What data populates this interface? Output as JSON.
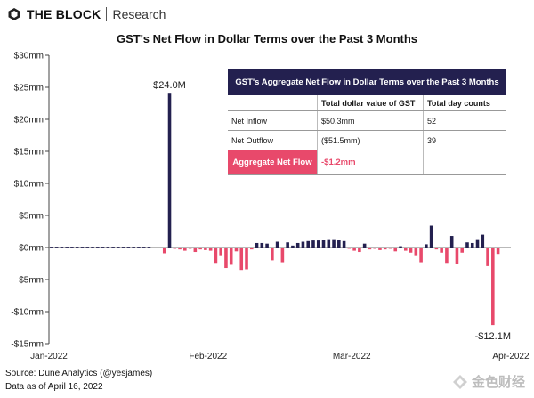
{
  "brand": {
    "name": "THE BLOCK",
    "sub": "Research"
  },
  "source": "Source: Dune Analytics (@yesjames)",
  "data_date": "Data as of April 16, 2022",
  "watermark": "金色财经",
  "colors": {
    "inflow": "#23204f",
    "outflow": "#e8496b",
    "axis": "#444444"
  },
  "chart_data": {
    "type": "bar",
    "title": "GST's Net Flow in Dollar Terms over the Past 3 Months",
    "xlabel": "",
    "ylabel": "",
    "ylim": [
      -15,
      30
    ],
    "yticks": [
      "$30mm",
      "$25mm",
      "$20mm",
      "$15mm",
      "$10mm",
      "$5mm",
      "$0mm",
      "-$5mm",
      "-$10mm",
      "-$15mm"
    ],
    "ytick_values": [
      30,
      25,
      20,
      15,
      10,
      5,
      0,
      -5,
      -10,
      -15
    ],
    "xticks": [
      "Jan-2022",
      "Feb-2022",
      "Mar-2022",
      "Apr-2022"
    ],
    "xtick_days": [
      0,
      31,
      59,
      90
    ],
    "unit": "USD millions",
    "values": [
      0.1,
      0.05,
      0.1,
      0.05,
      0.1,
      0.05,
      0.1,
      0.05,
      0.1,
      0.05,
      0.1,
      0.05,
      0.1,
      0.05,
      0.1,
      0.05,
      0.05,
      0.1,
      0.05,
      0.1,
      -0.05,
      -0.1,
      -0.9,
      24.0,
      -0.2,
      -0.3,
      -0.5,
      -0.2,
      -0.7,
      -0.3,
      -0.4,
      -0.5,
      -2.4,
      -1.2,
      -3.2,
      -2.7,
      -0.6,
      -3.5,
      -3.4,
      -0.3,
      0.7,
      0.7,
      0.6,
      -2.0,
      0.9,
      -2.3,
      0.8,
      0.3,
      0.7,
      0.9,
      1.0,
      1.1,
      1.1,
      1.2,
      1.3,
      1.3,
      1.2,
      1.0,
      -0.2,
      -0.5,
      -0.7,
      0.6,
      -0.3,
      -0.2,
      -0.4,
      -0.3,
      -0.2,
      -0.6,
      0.2,
      -0.5,
      -0.8,
      -1.2,
      -2.3,
      0.5,
      3.4,
      -0.3,
      -0.8,
      -2.4,
      1.8,
      -2.6,
      -0.8,
      0.8,
      0.7,
      1.3,
      2.0,
      -2.9,
      -12.1,
      -1.0
    ],
    "annotations": [
      {
        "text": "$24.0M",
        "day": 23,
        "value": 24.0
      },
      {
        "text": "-$12.1M",
        "day": 86,
        "value": -12.1
      }
    ],
    "table": {
      "title": "GST's Aggregate Net Flow in Dollar Terms over the Past 3 Months",
      "columns": [
        "",
        "Total dollar value of GST",
        "Total day counts"
      ],
      "rows": [
        [
          "Net Inflow",
          "$50.3mm",
          "52"
        ],
        [
          "Net Outflow",
          "($51.5mm)",
          "39"
        ]
      ],
      "aggregate_label": "Aggregate Net Flow",
      "aggregate_value": "-$1.2mm"
    }
  }
}
